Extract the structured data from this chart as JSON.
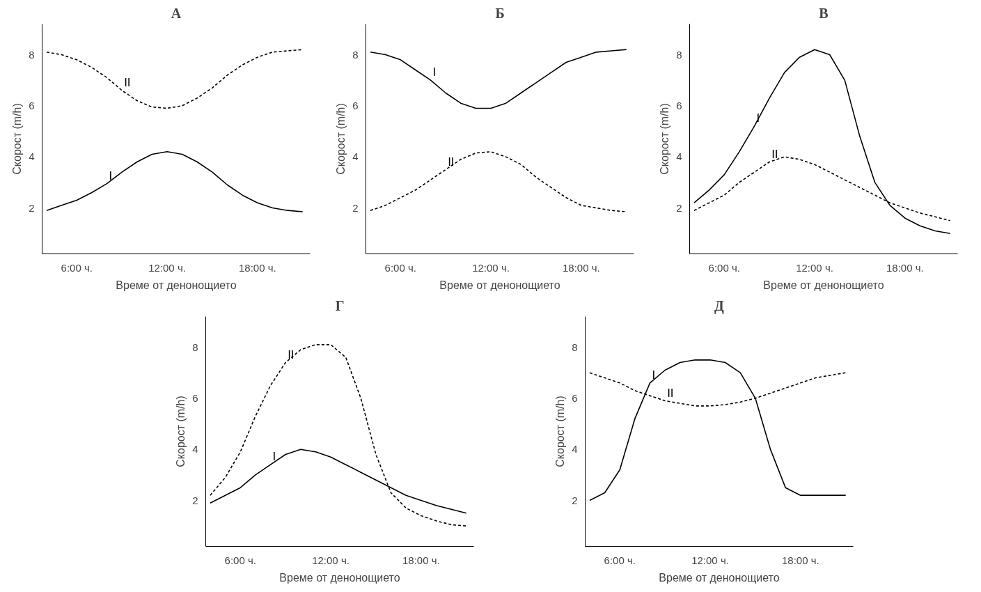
{
  "chart_data": [
    {
      "type": "line",
      "title": "А",
      "xlabel": "Време от денонощието",
      "ylabel": "Скорост (m/h)",
      "categories": [
        null,
        null,
        "6:00 ч.",
        null,
        null,
        null,
        null,
        null,
        "12:00 ч.",
        null,
        null,
        null,
        null,
        null,
        "18:00 ч.",
        null,
        null,
        null
      ],
      "ylim": [
        0.2,
        9.2
      ],
      "yticks": [
        2,
        4,
        6,
        8
      ],
      "series": [
        {
          "name": "I",
          "color": "#000000",
          "line_style": "solid",
          "values": [
            1.9,
            2.1,
            2.3,
            2.6,
            2.95,
            3.4,
            3.8,
            4.1,
            4.2,
            4.1,
            3.8,
            3.4,
            2.9,
            2.5,
            2.2,
            2.0,
            1.9,
            1.85
          ]
        },
        {
          "name": "II",
          "color": "#000000",
          "line_style": "dashed",
          "values": [
            8.1,
            8.0,
            7.8,
            7.5,
            7.1,
            6.6,
            6.2,
            5.95,
            5.9,
            6.0,
            6.3,
            6.7,
            7.2,
            7.6,
            7.9,
            8.1,
            8.15,
            8.2
          ]
        }
      ]
    },
    {
      "type": "line",
      "title": "Б",
      "xlabel": "Време от денонощието",
      "ylabel": "Скорост (m/h)",
      "categories": [
        null,
        null,
        "6:00 ч.",
        null,
        null,
        null,
        null,
        null,
        "12:00 ч.",
        null,
        null,
        null,
        null,
        null,
        "18:00 ч.",
        null,
        null,
        null
      ],
      "ylim": [
        0.2,
        9.2
      ],
      "yticks": [
        2,
        4,
        6,
        8
      ],
      "series": [
        {
          "name": "I",
          "color": "#000000",
          "line_style": "solid",
          "values": [
            8.1,
            8.0,
            7.8,
            7.4,
            7.0,
            6.5,
            6.1,
            5.9,
            5.9,
            6.1,
            6.5,
            6.9,
            7.3,
            7.7,
            7.9,
            8.1,
            8.15,
            8.2
          ]
        },
        {
          "name": "II",
          "color": "#000000",
          "line_style": "dashed",
          "values": [
            1.9,
            2.1,
            2.4,
            2.7,
            3.1,
            3.5,
            3.9,
            4.15,
            4.2,
            4.0,
            3.7,
            3.2,
            2.8,
            2.4,
            2.1,
            2.0,
            1.9,
            1.85
          ]
        }
      ]
    },
    {
      "type": "line",
      "title": "В",
      "xlabel": "Време от денонощието",
      "ylabel": "Скорост (m/h)",
      "categories": [
        null,
        null,
        "6:00 ч.",
        null,
        null,
        null,
        null,
        null,
        "12:00 ч.",
        null,
        null,
        null,
        null,
        null,
        "18:00 ч.",
        null,
        null,
        null
      ],
      "ylim": [
        0.2,
        9.2
      ],
      "yticks": [
        2,
        4,
        6,
        8
      ],
      "series": [
        {
          "name": "I",
          "color": "#000000",
          "line_style": "solid",
          "values": [
            2.2,
            2.7,
            3.3,
            4.2,
            5.2,
            6.3,
            7.3,
            7.9,
            8.2,
            8.0,
            7.0,
            4.8,
            3.0,
            2.1,
            1.6,
            1.3,
            1.1,
            1.0
          ]
        },
        {
          "name": "II",
          "color": "#000000",
          "line_style": "dashed",
          "values": [
            1.9,
            2.2,
            2.5,
            3.0,
            3.4,
            3.8,
            4.0,
            3.9,
            3.7,
            3.4,
            3.1,
            2.8,
            2.5,
            2.2,
            2.0,
            1.8,
            1.65,
            1.5
          ]
        }
      ]
    },
    {
      "type": "line",
      "title": "Г",
      "xlabel": "Време от денонощието",
      "ylabel": "Скорост (m/h)",
      "categories": [
        null,
        null,
        "6:00 ч.",
        null,
        null,
        null,
        null,
        null,
        "12:00 ч.",
        null,
        null,
        null,
        null,
        null,
        "18:00 ч.",
        null,
        null,
        null
      ],
      "ylim": [
        0.2,
        9.2
      ],
      "yticks": [
        2,
        4,
        6,
        8
      ],
      "series": [
        {
          "name": "I",
          "color": "#000000",
          "line_style": "solid",
          "values": [
            1.9,
            2.2,
            2.5,
            3.0,
            3.4,
            3.8,
            4.0,
            3.9,
            3.7,
            3.4,
            3.1,
            2.8,
            2.5,
            2.2,
            2.0,
            1.8,
            1.65,
            1.5
          ]
        },
        {
          "name": "II",
          "color": "#000000",
          "line_style": "dashed",
          "values": [
            2.2,
            2.9,
            3.9,
            5.3,
            6.5,
            7.4,
            7.9,
            8.1,
            8.1,
            7.6,
            6.0,
            3.8,
            2.3,
            1.7,
            1.4,
            1.2,
            1.05,
            1.0
          ]
        }
      ]
    },
    {
      "type": "line",
      "title": "Д",
      "xlabel": "Време от денонощието",
      "ylabel": "Скорост (m/h)",
      "categories": [
        null,
        null,
        "6:00 ч.",
        null,
        null,
        null,
        null,
        null,
        "12:00 ч.",
        null,
        null,
        null,
        null,
        null,
        "18:00 ч.",
        null,
        null,
        null
      ],
      "ylim": [
        0.2,
        9.2
      ],
      "yticks": [
        2,
        4,
        6,
        8
      ],
      "series": [
        {
          "name": "I",
          "color": "#000000",
          "line_style": "solid",
          "values": [
            2.0,
            2.3,
            3.2,
            5.2,
            6.6,
            7.1,
            7.4,
            7.5,
            7.5,
            7.4,
            7.0,
            6.0,
            4.0,
            2.5,
            2.2,
            2.2,
            2.2,
            2.2
          ]
        },
        {
          "name": "II",
          "color": "#000000",
          "line_style": "dashed",
          "values": [
            7.0,
            6.8,
            6.6,
            6.3,
            6.1,
            5.9,
            5.8,
            5.7,
            5.7,
            5.75,
            5.85,
            6.0,
            6.2,
            6.4,
            6.6,
            6.8,
            6.9,
            7.0
          ]
        }
      ]
    }
  ]
}
